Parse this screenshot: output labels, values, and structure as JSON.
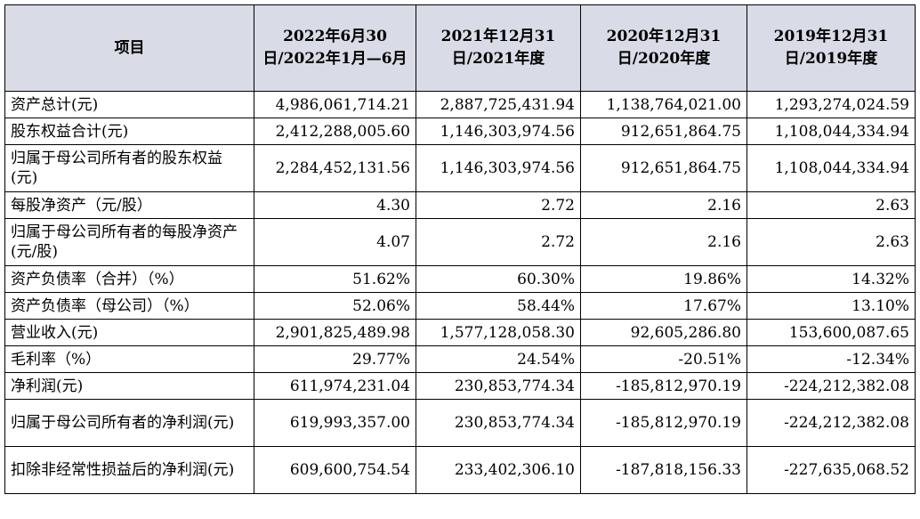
{
  "table": {
    "headers": [
      "项目",
      "2022年6月30日/2022年1月—6月",
      "2021年12月31日/2021年度",
      "2020年12月31日/2020年度",
      "2019年12月31日/2019年度"
    ],
    "rows": [
      {
        "label": "资产总计(元)",
        "values": [
          "4,986,061,714.21",
          "2,887,725,431.94",
          "1,138,764,021.00",
          "1,293,274,024.59"
        ]
      },
      {
        "label": "股东权益合计(元)",
        "values": [
          "2,412,288,005.60",
          "1,146,303,974.56",
          "912,651,864.75",
          "1,108,044,334.94"
        ]
      },
      {
        "label": "归属于母公司所有者的股东权益(元)",
        "values": [
          "2,284,452,131.56",
          "1,146,303,974.56",
          "912,651,864.75",
          "1,108,044,334.94"
        ]
      },
      {
        "label": "每股净资产（元/股）",
        "values": [
          "4.30",
          "2.72",
          "2.16",
          "2.63"
        ]
      },
      {
        "label": "归属于母公司所有者的每股净资产(元/股)",
        "values": [
          "4.07",
          "2.72",
          "2.16",
          "2.63"
        ]
      },
      {
        "label": "资产负债率（合并）（%）",
        "values": [
          "51.62%",
          "60.30%",
          "19.86%",
          "14.32%"
        ]
      },
      {
        "label": "资产负债率（母公司）（%）",
        "values": [
          "52.06%",
          "58.44%",
          "17.67%",
          "13.10%"
        ]
      },
      {
        "label": "营业收入(元)",
        "values": [
          "2,901,825,489.98",
          "1,577,128,058.30",
          "92,605,286.80",
          "153,600,087.65"
        ]
      },
      {
        "label": "毛利率（%）",
        "values": [
          "29.77%",
          "24.54%",
          "-20.51%",
          "-12.34%"
        ]
      },
      {
        "label": "净利润(元)",
        "values": [
          "611,974,231.04",
          "230,853,774.34",
          "-185,812,970.19",
          "-224,212,382.08"
        ]
      },
      {
        "label": "归属于母公司所有者的净利润(元)",
        "values": [
          "619,993,357.00",
          "230,853,774.34",
          "-185,812,970.19",
          "-224,212,382.08"
        ]
      },
      {
        "label": "扣除非经常性损益后的净利润(元)",
        "values": [
          "609,600,754.54",
          "233,402,306.10",
          "-187,818,156.33",
          "-227,635,068.52"
        ]
      }
    ]
  }
}
